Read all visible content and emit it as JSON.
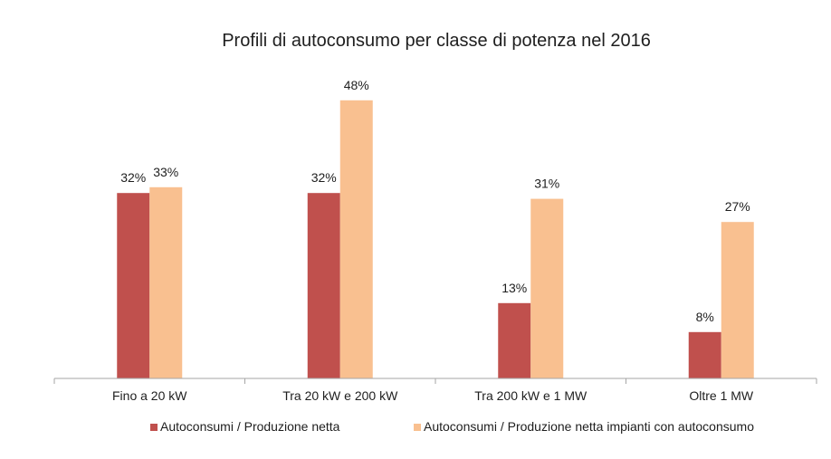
{
  "chart_data": {
    "type": "bar",
    "title": "Profili di autoconsumo per classe di potenza nel 2016",
    "categories": [
      "Fino a 20 kW",
      "Tra 20 kW e 200 kW",
      "Tra 200 kW e 1 MW",
      "Oltre 1 MW"
    ],
    "series": [
      {
        "name": "Autoconsumi / Produzione netta",
        "values": [
          32,
          32,
          13,
          8
        ],
        "labels": [
          "32%",
          "32%",
          "13%",
          "8%"
        ],
        "color": "#c0504d"
      },
      {
        "name": "Autoconsumi / Produzione netta impianti con autoconsumo",
        "values": [
          33,
          48,
          31,
          27
        ],
        "labels": [
          "33%",
          "48%",
          "31%",
          "27%"
        ],
        "color": "#f9c090"
      }
    ],
    "xlabel": "",
    "ylabel": "",
    "ylim": [
      0,
      50
    ],
    "grid": false,
    "legend": "bottom"
  }
}
